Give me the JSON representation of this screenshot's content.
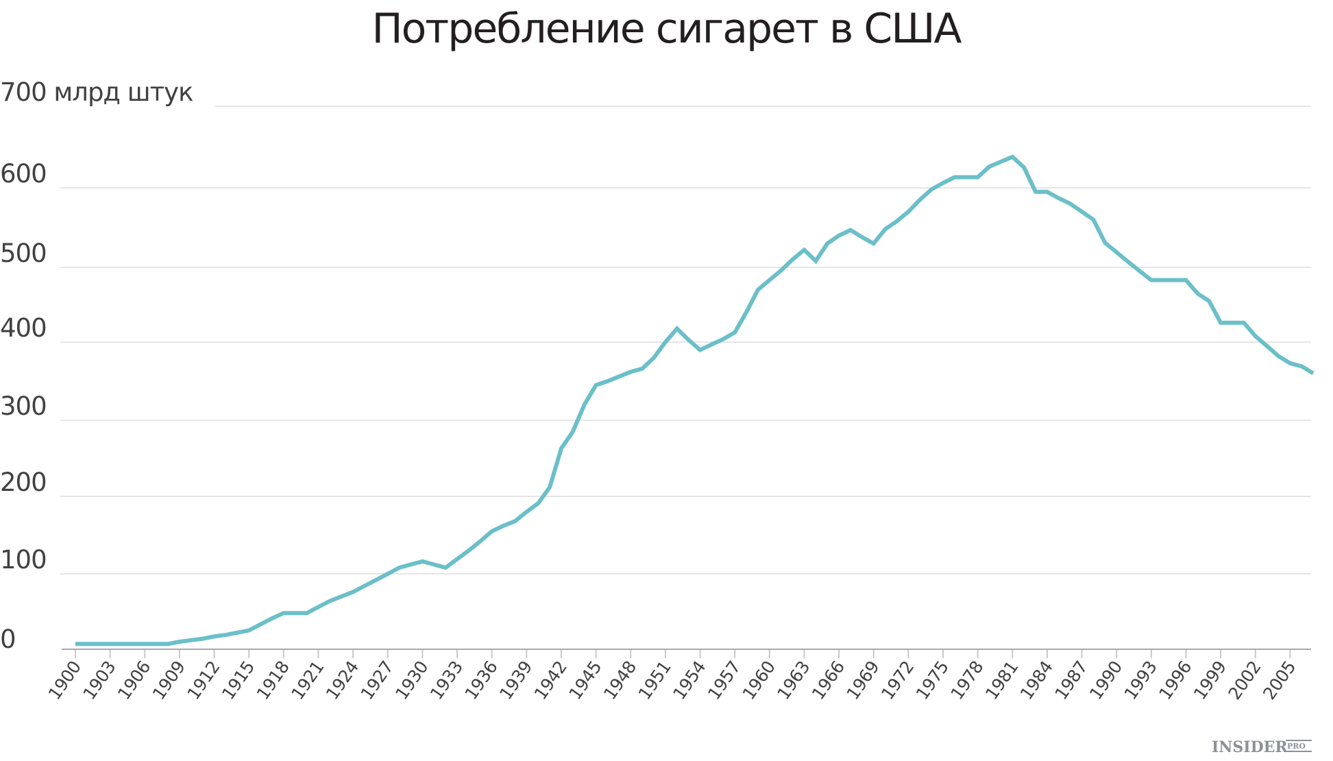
{
  "chart_data": {
    "type": "line",
    "title": "Потребление сигарет в США",
    "xlabel": "",
    "ylabel": "млрд штук",
    "ylim": [
      0,
      700
    ],
    "xlim": [
      1900,
      2007
    ],
    "grid": true,
    "legend": null,
    "y_ticks": [
      {
        "value": 0,
        "label": "0"
      },
      {
        "value": 100,
        "label": "100"
      },
      {
        "value": 200,
        "label": "200"
      },
      {
        "value": 300,
        "label": "300"
      },
      {
        "value": 400,
        "label": "400"
      },
      {
        "value": 500,
        "label": "500"
      },
      {
        "value": 600,
        "label": "600"
      },
      {
        "value": 700,
        "label": "700 млрд штук"
      }
    ],
    "x_ticks": [
      "1900",
      "1903",
      "1906",
      "1909",
      "1912",
      "1915",
      "1918",
      "1921",
      "1924",
      "1927",
      "1930",
      "1933",
      "1936",
      "1939",
      "1942",
      "1945",
      "1948",
      "1951",
      "1954",
      "1957",
      "1960",
      "1963",
      "1966",
      "1969",
      "1972",
      "1975",
      "1978",
      "1981",
      "1984",
      "1987",
      "1990",
      "1993",
      "1996",
      "1999",
      "2002",
      "2005"
    ],
    "series": [
      {
        "name": "Потребление сигарет",
        "color": "#6bbfc8",
        "x": [
          1900,
          1901,
          1902,
          1903,
          1904,
          1905,
          1906,
          1907,
          1908,
          1909,
          1910,
          1911,
          1912,
          1913,
          1914,
          1915,
          1916,
          1917,
          1918,
          1919,
          1920,
          1921,
          1922,
          1923,
          1924,
          1925,
          1926,
          1927,
          1928,
          1929,
          1930,
          1931,
          1932,
          1933,
          1934,
          1935,
          1936,
          1937,
          1938,
          1939,
          1940,
          1941,
          1942,
          1943,
          1944,
          1945,
          1946,
          1947,
          1948,
          1949,
          1950,
          1951,
          1952,
          1953,
          1954,
          1955,
          1956,
          1957,
          1958,
          1959,
          1960,
          1961,
          1962,
          1963,
          1964,
          1965,
          1966,
          1967,
          1968,
          1969,
          1970,
          1971,
          1972,
          1973,
          1974,
          1975,
          1976,
          1977,
          1978,
          1979,
          1980,
          1981,
          1982,
          1983,
          1984,
          1985,
          1986,
          1987,
          1988,
          1989,
          1990,
          1991,
          1992,
          1993,
          1994,
          1995,
          1996,
          1997,
          1998,
          1999,
          2000,
          2001,
          2002,
          2003,
          2004,
          2005,
          2006,
          2007
        ],
        "values": [
          7,
          7,
          7,
          7,
          7,
          7,
          7,
          7,
          7,
          10,
          12,
          14,
          17,
          19,
          22,
          25,
          33,
          41,
          48,
          48,
          48,
          56,
          64,
          70,
          76,
          84,
          92,
          100,
          108,
          112,
          116,
          112,
          108,
          119,
          130,
          142,
          155,
          162,
          168,
          180,
          191,
          212,
          263,
          285,
          320,
          345,
          350,
          356,
          362,
          366,
          380,
          400,
          418,
          403,
          390,
          397,
          404,
          413,
          440,
          470,
          483,
          496,
          510,
          522,
          508,
          530,
          540,
          547,
          538,
          530,
          548,
          558,
          570,
          585,
          598,
          606,
          613,
          613,
          613,
          626,
          632,
          638,
          625,
          595,
          595,
          587,
          580,
          570,
          560,
          531,
          519,
          507,
          495,
          483,
          483,
          483,
          483,
          465,
          455,
          426,
          426,
          426,
          408,
          395,
          382,
          373,
          369,
          360
        ]
      }
    ]
  },
  "watermark": {
    "brand": "INSIDER",
    "suffix": "PRO"
  }
}
